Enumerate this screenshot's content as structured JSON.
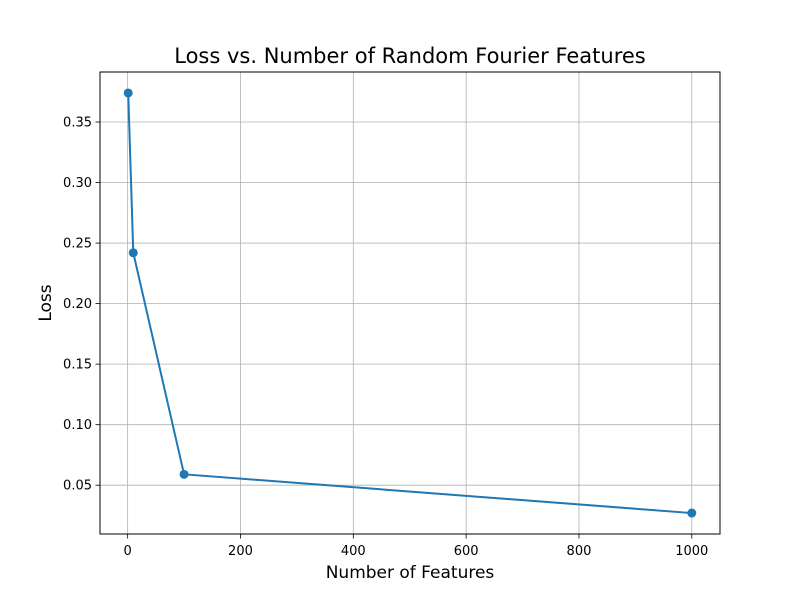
{
  "chart_data": {
    "type": "line",
    "title": "Loss vs. Number of Random Fourier Features",
    "xlabel": "Number of Features",
    "ylabel": "Loss",
    "x": [
      1,
      10,
      100,
      1000
    ],
    "series": [
      {
        "values": [
          0.374,
          0.242,
          0.059,
          0.027
        ],
        "color": "#1f77b4",
        "marker": "circle"
      }
    ],
    "xlim": [
      -49,
      1050
    ],
    "ylim": [
      0.0097,
      0.3913
    ],
    "xticks": [
      0,
      200,
      400,
      600,
      800,
      1000
    ],
    "xtick_labels": [
      "0",
      "200",
      "400",
      "600",
      "800",
      "1000"
    ],
    "yticks": [
      0.05,
      0.1,
      0.15,
      0.2,
      0.25,
      0.3,
      0.35
    ],
    "ytick_labels": [
      "0.05",
      "0.10",
      "0.15",
      "0.20",
      "0.25",
      "0.30",
      "0.35"
    ],
    "grid": true,
    "legend": false
  }
}
